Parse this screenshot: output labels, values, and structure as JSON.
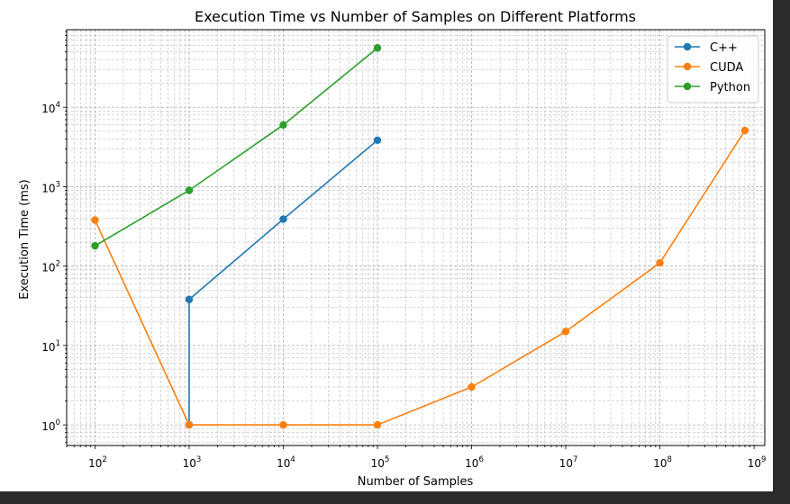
{
  "chart_data": {
    "type": "line",
    "title": "Execution Time vs Number of Samples on Different Platforms",
    "xlabel": "Number of Samples",
    "ylabel": "Execution Time (ms)",
    "xscale": "log",
    "yscale": "log",
    "xlim": [
      50,
      1300000000
    ],
    "ylim": [
      0.55,
      95000
    ],
    "x_ticks": [
      {
        "base": "10",
        "exp": "2",
        "value": 100
      },
      {
        "base": "10",
        "exp": "3",
        "value": 1000
      },
      {
        "base": "10",
        "exp": "4",
        "value": 10000
      },
      {
        "base": "10",
        "exp": "5",
        "value": 100000
      },
      {
        "base": "10",
        "exp": "6",
        "value": 1000000
      },
      {
        "base": "10",
        "exp": "7",
        "value": 10000000
      },
      {
        "base": "10",
        "exp": "8",
        "value": 100000000
      },
      {
        "base": "10",
        "exp": "9",
        "value": 1000000000
      }
    ],
    "y_ticks": [
      {
        "base": "10",
        "exp": "0",
        "value": 1
      },
      {
        "base": "10",
        "exp": "1",
        "value": 10
      },
      {
        "base": "10",
        "exp": "2",
        "value": 100
      },
      {
        "base": "10",
        "exp": "3",
        "value": 1000
      },
      {
        "base": "10",
        "exp": "4",
        "value": 10000
      }
    ],
    "grid": true,
    "grid_which": "both",
    "legend_position": "top-right",
    "series": [
      {
        "name": "C++",
        "color": "#1f77b4",
        "points": [
          {
            "x": 1000,
            "y": 1
          },
          {
            "x": 1000,
            "y": 38
          },
          {
            "x": 10000,
            "y": 390
          },
          {
            "x": 100000,
            "y": 3850
          }
        ]
      },
      {
        "name": "CUDA",
        "color": "#ff7f0e",
        "points": [
          {
            "x": 100,
            "y": 380
          },
          {
            "x": 1000,
            "y": 1
          },
          {
            "x": 10000,
            "y": 1
          },
          {
            "x": 100000,
            "y": 1
          },
          {
            "x": 1000000,
            "y": 3
          },
          {
            "x": 10000000,
            "y": 15
          },
          {
            "x": 100000000,
            "y": 110
          },
          {
            "x": 800000000,
            "y": 5100
          }
        ]
      },
      {
        "name": "Python",
        "color": "#2ca02c",
        "points": [
          {
            "x": 100,
            "y": 180
          },
          {
            "x": 1000,
            "y": 900
          },
          {
            "x": 10000,
            "y": 6000
          },
          {
            "x": 100000,
            "y": 56000
          }
        ]
      }
    ]
  }
}
